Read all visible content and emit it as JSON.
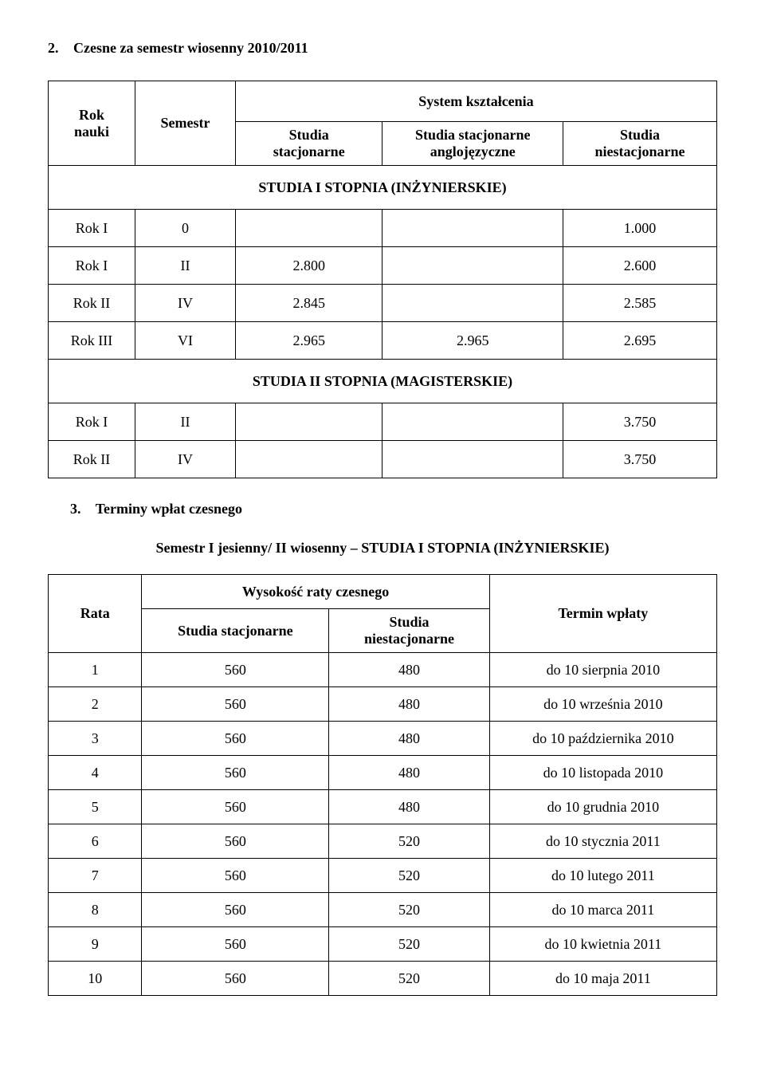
{
  "section2": {
    "num": "2.",
    "title": "Czesne za semestr wiosenny 2010/2011"
  },
  "table1": {
    "headers": {
      "rok_nauki_l1": "Rok",
      "rok_nauki_l2": "nauki",
      "semestr": "Semestr",
      "system": "System kształcenia",
      "stac_l1": "Studia",
      "stac_l2": "stacjonarne",
      "ang_l1": "Studia stacjonarne",
      "ang_l2": "anglojęzyczne",
      "niestac_l1": "Studia",
      "niestac_l2": "niestacjonarne"
    },
    "section_inz": "STUDIA I STOPNIA (INŻYNIERSKIE)",
    "section_mgr": "STUDIA II STOPNIA (MAGISTERSKIE)",
    "rows_inz": [
      {
        "rok": "Rok I",
        "sem": "0",
        "stac": "",
        "ang": "",
        "niestac": "1.000"
      },
      {
        "rok": "Rok I",
        "sem": "II",
        "stac": "2.800",
        "ang": "",
        "niestac": "2.600"
      },
      {
        "rok": "Rok II",
        "sem": "IV",
        "stac": "2.845",
        "ang": "",
        "niestac": "2.585"
      },
      {
        "rok": "Rok III",
        "sem": "VI",
        "stac": "2.965",
        "ang": "2.965",
        "niestac": "2.695"
      }
    ],
    "rows_mgr": [
      {
        "rok": "Rok I",
        "sem": "II",
        "stac": "",
        "ang": "",
        "niestac": "3.750"
      },
      {
        "rok": "Rok II",
        "sem": "IV",
        "stac": "",
        "ang": "",
        "niestac": "3.750"
      }
    ]
  },
  "section3": {
    "num": "3.",
    "title": "Terminy wpłat czesnego"
  },
  "subheading": "Semestr I jesienny/ II wiosenny – STUDIA I STOPNIA (INŻYNIERSKIE)",
  "table2": {
    "headers": {
      "rata": "Rata",
      "wys": "Wysokość raty czesnego",
      "stac": "Studia stacjonarne",
      "niestac_l1": "Studia",
      "niestac_l2": "niestacjonarne",
      "termin": "Termin wpłaty"
    },
    "rows": [
      {
        "n": "1",
        "stac": "560",
        "niestac": "480",
        "termin": "do 10 sierpnia 2010"
      },
      {
        "n": "2",
        "stac": "560",
        "niestac": "480",
        "termin": "do 10 września 2010"
      },
      {
        "n": "3",
        "stac": "560",
        "niestac": "480",
        "termin": "do 10 października 2010"
      },
      {
        "n": "4",
        "stac": "560",
        "niestac": "480",
        "termin": "do 10 listopada 2010"
      },
      {
        "n": "5",
        "stac": "560",
        "niestac": "480",
        "termin": "do 10 grudnia 2010"
      },
      {
        "n": "6",
        "stac": "560",
        "niestac": "520",
        "termin": "do 10 stycznia 2011"
      },
      {
        "n": "7",
        "stac": "560",
        "niestac": "520",
        "termin": "do 10 lutego 2011"
      },
      {
        "n": "8",
        "stac": "560",
        "niestac": "520",
        "termin": "do 10 marca 2011"
      },
      {
        "n": "9",
        "stac": "560",
        "niestac": "520",
        "termin": "do 10 kwietnia 2011"
      },
      {
        "n": "10",
        "stac": "560",
        "niestac": "520",
        "termin": "do 10 maja 2011"
      }
    ]
  }
}
